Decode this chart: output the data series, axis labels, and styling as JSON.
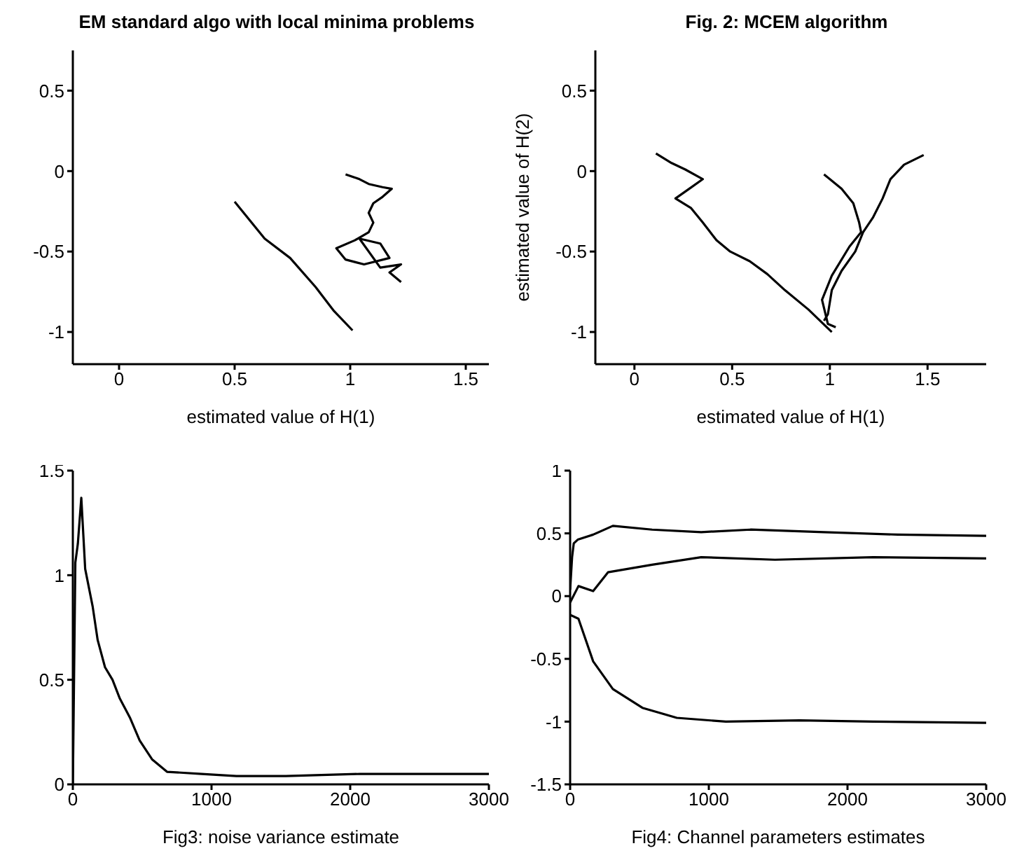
{
  "chart_data": [
    {
      "type": "line",
      "title": "EM standard algo with local minima problems",
      "xlabel": "estimated value of H(1)",
      "xlim": [
        -0.2,
        1.6
      ],
      "ylim": [
        -1.2,
        0.75
      ],
      "xticks": [
        0,
        0.5,
        1,
        1.5
      ],
      "yticks": [
        -1,
        -0.5,
        0,
        0.5
      ],
      "grid": false,
      "series": [
        {
          "color": "#000000",
          "x": [
            0.5,
            0.63,
            0.74,
            0.85,
            0.93,
            1.01
          ],
          "values": [
            -0.19,
            -0.42,
            -0.54,
            -0.72,
            -0.87,
            -0.99
          ]
        },
        {
          "color": "#000000",
          "x": [
            0.98,
            1.04,
            1.08,
            1.14,
            1.18,
            1.14,
            1.1,
            1.08,
            1.1,
            1.08,
            1.02,
            0.94,
            0.98,
            1.06,
            1.17,
            1.13,
            1.04,
            1.13,
            1.22,
            1.17,
            1.22
          ],
          "values": [
            -0.02,
            -0.05,
            -0.08,
            -0.1,
            -0.11,
            -0.16,
            -0.2,
            -0.26,
            -0.32,
            -0.38,
            -0.43,
            -0.48,
            -0.55,
            -0.58,
            -0.54,
            -0.45,
            -0.42,
            -0.6,
            -0.58,
            -0.63,
            -0.69
          ]
        }
      ]
    },
    {
      "type": "line",
      "title": "Fig. 2: MCEM algorithm",
      "xlabel": "estimated value of H(1)",
      "ylabel": "estimated value of H(2)",
      "xlim": [
        -0.2,
        1.8
      ],
      "ylim": [
        -1.2,
        0.75
      ],
      "xticks": [
        0,
        0.5,
        1,
        1.5
      ],
      "yticks": [
        -1,
        -0.5,
        0,
        0.5
      ],
      "grid": false,
      "series": [
        {
          "color": "#000000",
          "x": [
            0.11,
            0.19,
            0.26,
            0.35,
            0.28,
            0.21,
            0.29,
            0.35,
            0.42,
            0.49,
            0.59,
            0.68,
            0.77,
            0.89,
            1.01
          ],
          "values": [
            0.11,
            0.05,
            0.01,
            -0.05,
            -0.11,
            -0.17,
            -0.23,
            -0.32,
            -0.43,
            -0.5,
            -0.56,
            -0.64,
            -0.74,
            -0.86,
            -1.0
          ]
        },
        {
          "color": "#000000",
          "x": [
            0.97,
            1.06,
            1.12,
            1.15,
            1.16,
            1.1,
            1.01,
            0.96,
            0.99,
            1.03
          ],
          "values": [
            -0.02,
            -0.11,
            -0.2,
            -0.32,
            -0.38,
            -0.47,
            -0.65,
            -0.8,
            -0.95,
            -0.97
          ]
        },
        {
          "color": "#000000",
          "x": [
            1.48,
            1.38,
            1.31,
            1.27,
            1.22,
            1.17,
            1.13,
            1.06,
            1.01,
            0.99,
            0.97
          ],
          "values": [
            0.1,
            0.04,
            -0.05,
            -0.17,
            -0.29,
            -0.38,
            -0.5,
            -0.62,
            -0.74,
            -0.89,
            -0.93
          ]
        }
      ]
    },
    {
      "type": "line",
      "xlabel": "Fig3: noise variance estimate",
      "xlim": [
        0,
        3000
      ],
      "ylim": [
        0,
        1.5
      ],
      "xticks": [
        0,
        1000,
        2000,
        3000
      ],
      "yticks": [
        0,
        0.5,
        1,
        1.5
      ],
      "grid": false,
      "series": [
        {
          "color": "#000000",
          "x": [
            0,
            18,
            36,
            61,
            89,
            143,
            179,
            232,
            286,
            339,
            411,
            482,
            571,
            679,
            929,
            1179,
            1536,
            2071,
            2607,
            3000
          ],
          "values": [
            0,
            1.06,
            1.15,
            1.37,
            1.03,
            0.85,
            0.69,
            0.56,
            0.5,
            0.41,
            0.32,
            0.21,
            0.12,
            0.06,
            0.05,
            0.04,
            0.04,
            0.05,
            0.05,
            0.05
          ]
        }
      ]
    },
    {
      "type": "line",
      "xlabel": "Fig4: Channel parameters estimates",
      "xlim": [
        0,
        3000
      ],
      "ylim": [
        -1.5,
        1
      ],
      "xticks": [
        0,
        1000,
        2000,
        3000
      ],
      "yticks": [
        -1.5,
        -1,
        -0.5,
        0,
        0.5,
        1
      ],
      "grid": false,
      "series": [
        {
          "color": "#000000",
          "x": [
            0,
            14,
            26,
            55,
            166,
            308,
            591,
            945,
            1300,
            1831,
            2362,
            3000
          ],
          "values": [
            0.05,
            0.31,
            0.42,
            0.45,
            0.49,
            0.56,
            0.53,
            0.51,
            0.53,
            0.51,
            0.49,
            0.48
          ]
        },
        {
          "color": "#000000",
          "x": [
            0,
            60,
            166,
            273,
            591,
            945,
            1477,
            2185,
            3000
          ],
          "values": [
            -0.05,
            0.08,
            0.04,
            0.19,
            0.25,
            0.31,
            0.29,
            0.31,
            0.3
          ]
        },
        {
          "color": "#000000",
          "x": [
            0,
            60,
            166,
            308,
            521,
            769,
            1123,
            1654,
            2185,
            3000
          ],
          "values": [
            -0.15,
            -0.18,
            -0.52,
            -0.74,
            -0.89,
            -0.97,
            -1.0,
            -0.99,
            -1.0,
            -1.01
          ]
        }
      ]
    }
  ]
}
